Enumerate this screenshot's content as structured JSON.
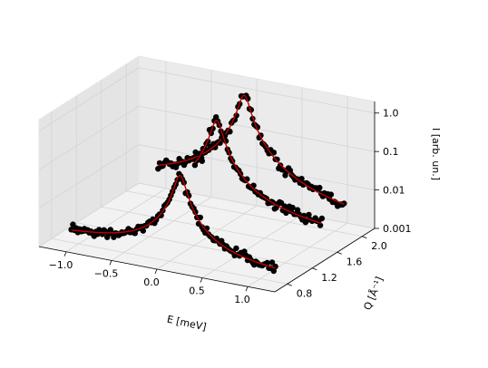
{
  "chart_data": {
    "type": "scatter",
    "title": "",
    "xlabel": "E [meV]",
    "ylabel": "Q [Å⁻¹]",
    "zlabel": "I [arb. un.]",
    "xlim": [
      -1.3,
      1.3
    ],
    "ylim": [
      0.6,
      2.2
    ],
    "zlim_log10": [
      -3,
      0.3
    ],
    "zscale": "log",
    "grid": true,
    "x_ticks": [
      "−1.0",
      "−0.5",
      "0.0",
      "0.5",
      "1.0"
    ],
    "y_ticks": [
      "0.8",
      "1.2",
      "1.6",
      "2.0"
    ],
    "z_ticks": [
      "0.001",
      "0.01",
      "0.1",
      "1.0"
    ],
    "colors": {
      "points": "#000000",
      "fit": "#c00000"
    },
    "series": [
      {
        "Q": 0.9,
        "center_E": 0.05,
        "peak": 0.14,
        "hwhm": 0.06,
        "background": 0.0012,
        "E_range": [
          -1.15,
          1.1
        ]
      },
      {
        "Q": 1.5,
        "center_E": 0.04,
        "peak": 0.9,
        "hwhm": 0.06,
        "background": 0.004,
        "E_range": [
          -0.2,
          1.2
        ]
      },
      {
        "Q": 2.0,
        "center_E": 0.0,
        "peak": 1.2,
        "hwhm": 0.06,
        "background": 0.002,
        "E_range": [
          -0.95,
          1.1
        ]
      }
    ]
  }
}
